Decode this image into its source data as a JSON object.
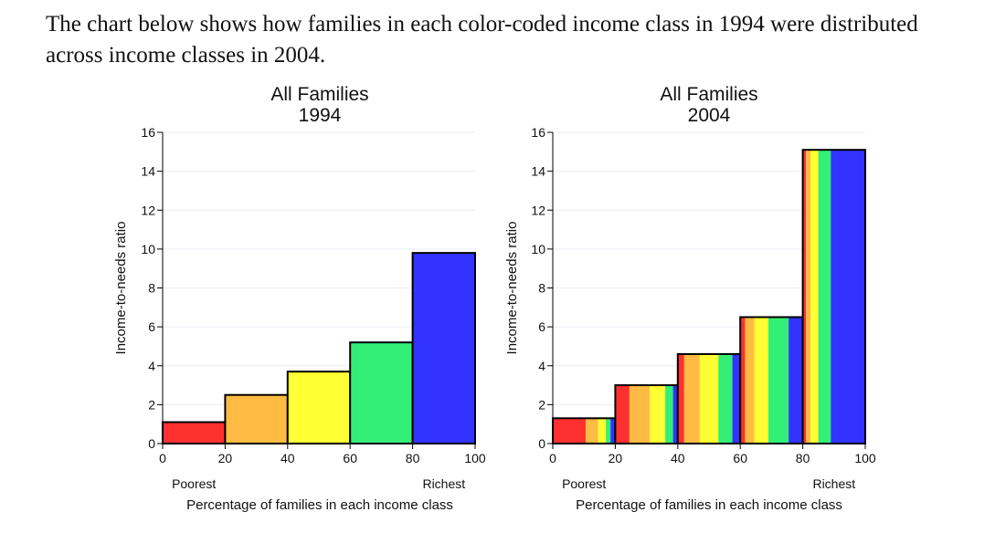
{
  "intro_text": "The chart below shows how families in each color-coded income class in 1994 were distributed across income classes in 2004.",
  "chart_data": [
    {
      "type": "bar",
      "title": "All Families",
      "subtitle": "1994",
      "ylabel": "Income-to-needs ratio",
      "xlabel": "Percentage of families in each income class",
      "left_label": "Poorest",
      "right_label": "Richest",
      "xlim": [
        0,
        100
      ],
      "ylim": [
        0,
        16
      ],
      "xticks": [
        0,
        20,
        40,
        60,
        80,
        100
      ],
      "yticks": [
        0,
        2,
        4,
        6,
        8,
        10,
        12,
        14,
        16
      ],
      "bars": [
        {
          "x0": 0,
          "x1": 20,
          "value": 1.1,
          "segments": [
            {
              "color": "#ff3030",
              "share": 1
            }
          ]
        },
        {
          "x0": 20,
          "x1": 40,
          "value": 2.5,
          "segments": [
            {
              "color": "#ffbb44",
              "share": 1
            }
          ]
        },
        {
          "x0": 40,
          "x1": 60,
          "value": 3.7,
          "segments": [
            {
              "color": "#ffff33",
              "share": 1
            }
          ]
        },
        {
          "x0": 60,
          "x1": 80,
          "value": 5.2,
          "segments": [
            {
              "color": "#33ee77",
              "share": 1
            }
          ]
        },
        {
          "x0": 80,
          "x1": 100,
          "value": 9.8,
          "segments": [
            {
              "color": "#3333ff",
              "share": 1
            }
          ]
        }
      ]
    },
    {
      "type": "bar",
      "title": "All Families",
      "subtitle": "2004",
      "ylabel": "Income-to-needs ratio",
      "xlabel": "Percentage of families in each income class",
      "left_label": "Poorest",
      "right_label": "Richest",
      "xlim": [
        0,
        100
      ],
      "ylim": [
        0,
        16
      ],
      "xticks": [
        0,
        20,
        40,
        60,
        80,
        100
      ],
      "yticks": [
        0,
        2,
        4,
        6,
        8,
        10,
        12,
        14,
        16
      ],
      "bars": [
        {
          "x0": 0,
          "x1": 20,
          "value": 1.3,
          "segments": [
            {
              "color": "#ff3030",
              "share": 10.5
            },
            {
              "color": "#ffbb44",
              "share": 4
            },
            {
              "color": "#ffff33",
              "share": 2.5
            },
            {
              "color": "#33ee77",
              "share": 1.5
            },
            {
              "color": "#3333ff",
              "share": 1.5
            }
          ]
        },
        {
          "x0": 20,
          "x1": 40,
          "value": 3.0,
          "segments": [
            {
              "color": "#ff3030",
              "share": 4.5
            },
            {
              "color": "#ffbb44",
              "share": 6.5
            },
            {
              "color": "#ffff33",
              "share": 5
            },
            {
              "color": "#33ee77",
              "share": 2.5
            },
            {
              "color": "#3333ff",
              "share": 1.5
            }
          ]
        },
        {
          "x0": 40,
          "x1": 60,
          "value": 4.6,
          "segments": [
            {
              "color": "#ff3030",
              "share": 2
            },
            {
              "color": "#ffbb44",
              "share": 5
            },
            {
              "color": "#ffff33",
              "share": 6
            },
            {
              "color": "#33ee77",
              "share": 4.5
            },
            {
              "color": "#3333ff",
              "share": 2.5
            }
          ]
        },
        {
          "x0": 60,
          "x1": 80,
          "value": 6.5,
          "segments": [
            {
              "color": "#ff3030",
              "share": 1.5
            },
            {
              "color": "#ffbb44",
              "share": 3
            },
            {
              "color": "#ffff33",
              "share": 4.5
            },
            {
              "color": "#33ee77",
              "share": 6.5
            },
            {
              "color": "#3333ff",
              "share": 4.5
            }
          ]
        },
        {
          "x0": 80,
          "x1": 100,
          "value": 15.1,
          "segments": [
            {
              "color": "#ff3030",
              "share": 1
            },
            {
              "color": "#ffbb44",
              "share": 1.5
            },
            {
              "color": "#ffff33",
              "share": 2.5
            },
            {
              "color": "#33ee77",
              "share": 4
            },
            {
              "color": "#3333ff",
              "share": 11
            }
          ]
        }
      ]
    }
  ]
}
